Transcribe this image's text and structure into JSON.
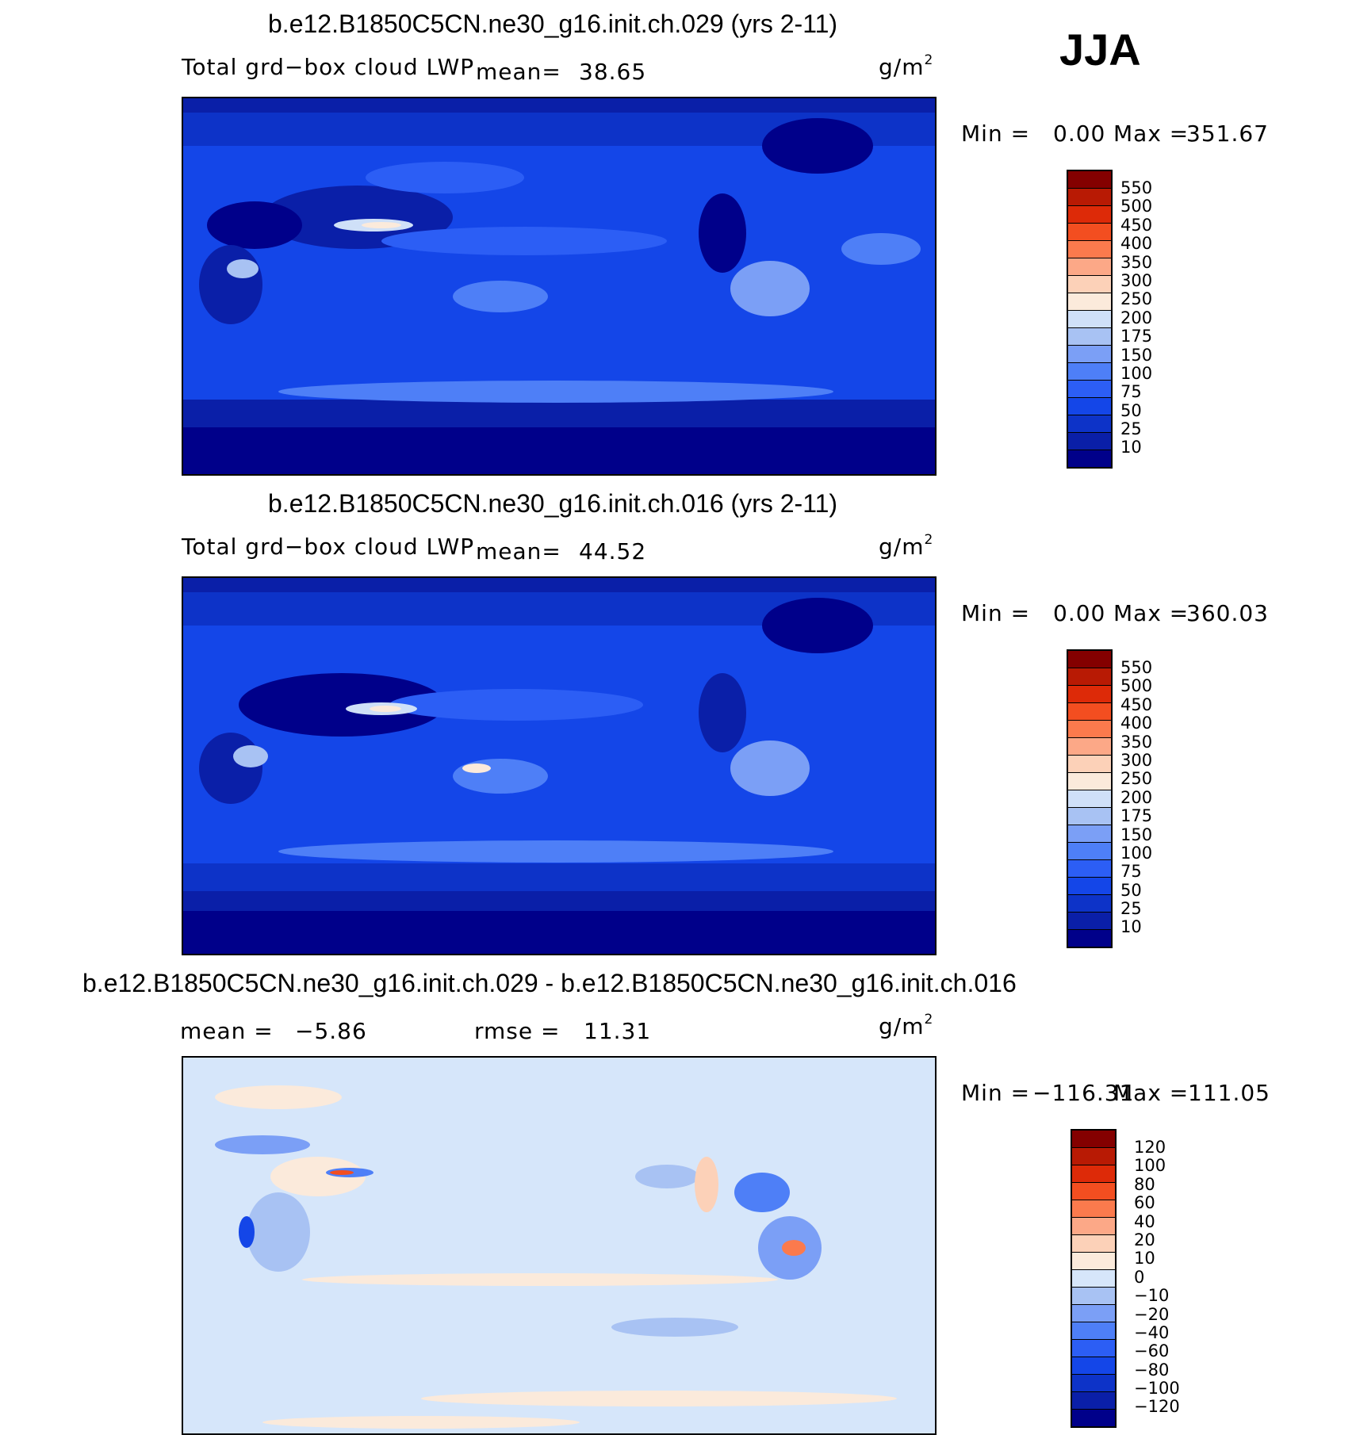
{
  "season": "JJA",
  "panels": [
    {
      "title": "b.e12.B1850C5CN.ne30_g16.init.ch.029 (yrs 2-11)",
      "field_label": "Total grd−box cloud LWP",
      "mean_label": "mean=",
      "mean_value": "38.65",
      "units": "g/m",
      "units_sup": "2",
      "min_label": "Min =",
      "min_value": "0.00",
      "max_label": "Max =",
      "max_value": "351.67",
      "colorbar": {
        "labels": [
          "550",
          "500",
          "450",
          "400",
          "350",
          "300",
          "250",
          "200",
          "175",
          "150",
          "100",
          "75",
          "50",
          "25",
          "10"
        ],
        "colors": [
          "#00008a",
          "#0a1fa8",
          "#0d33c8",
          "#1446e8",
          "#2c5ef5",
          "#4e7ff7",
          "#7b9ff6",
          "#a8c2f3",
          "#cfe0f8",
          "#fbeadb",
          "#fcd1b8",
          "#fca887",
          "#fb7a4d",
          "#f34e20",
          "#dd2a08",
          "#b81a04",
          "#840000"
        ]
      }
    },
    {
      "title": "b.e12.B1850C5CN.ne30_g16.init.ch.016 (yrs 2-11)",
      "field_label": "Total grd−box cloud LWP",
      "mean_label": "mean=",
      "mean_value": "44.52",
      "units": "g/m",
      "units_sup": "2",
      "min_label": "Min =",
      "min_value": "0.00",
      "max_label": "Max =",
      "max_value": "360.03",
      "colorbar": {
        "labels": [
          "550",
          "500",
          "450",
          "400",
          "350",
          "300",
          "250",
          "200",
          "175",
          "150",
          "100",
          "75",
          "50",
          "25",
          "10"
        ],
        "colors": [
          "#00008a",
          "#0a1fa8",
          "#0d33c8",
          "#1446e8",
          "#2c5ef5",
          "#4e7ff7",
          "#7b9ff6",
          "#a8c2f3",
          "#cfe0f8",
          "#fbeadb",
          "#fcd1b8",
          "#fca887",
          "#fb7a4d",
          "#f34e20",
          "#dd2a08",
          "#b81a04",
          "#840000"
        ]
      }
    },
    {
      "title": "b.e12.B1850C5CN.ne30_g16.init.ch.029 - b.e12.B1850C5CN.ne30_g16.init.ch.016",
      "mean_label": "mean =",
      "mean_value": "−5.86",
      "rmse_label": "rmse =",
      "rmse_value": "11.31",
      "units": "g/m",
      "units_sup": "2",
      "min_label": "Min =",
      "min_value": "−116.31",
      "max_label": "Max =",
      "max_value": "111.05",
      "colorbar": {
        "labels": [
          "120",
          "100",
          "80",
          "60",
          "40",
          "20",
          "10",
          "0",
          "−10",
          "−20",
          "−40",
          "−60",
          "−80",
          "−100",
          "−120"
        ],
        "colors": [
          "#00008a",
          "#0a1fa8",
          "#0d33c8",
          "#1446e8",
          "#2c5ef5",
          "#4e7ff7",
          "#7b9ff6",
          "#a8c2f3",
          "#d6e6fa",
          "#fbeadb",
          "#fcd1b8",
          "#fca887",
          "#fb7a4d",
          "#f34e20",
          "#dd2a08",
          "#b81a04",
          "#840000"
        ]
      }
    }
  ]
}
